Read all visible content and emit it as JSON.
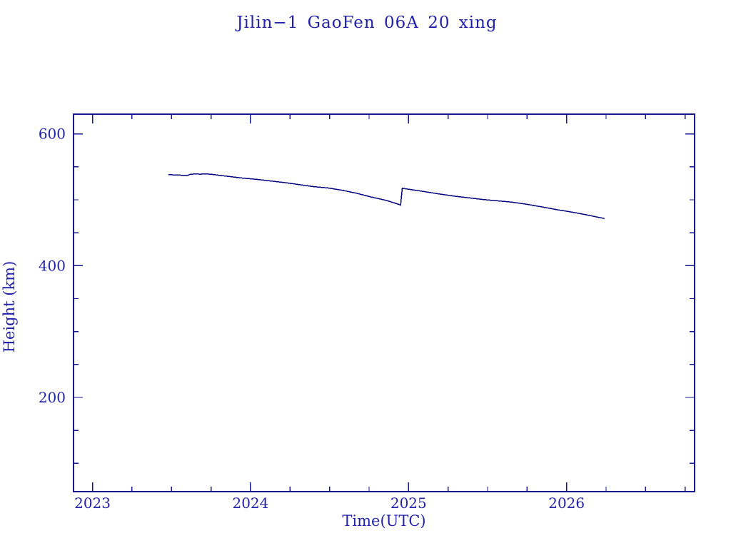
{
  "colors": {
    "background": "#ffffff",
    "text": "#2222aa",
    "axis": "#16168e",
    "line": "#000080"
  },
  "chart_data": {
    "type": "line",
    "title": "Jilin−1 GaoFen 06A 20 xing",
    "xlabel": "Time(UTC)",
    "ylabel": "Height (km)",
    "xlim": [
      2022.88,
      2026.81
    ],
    "ylim": [
      57,
      630
    ],
    "x_major_ticks": [
      2023,
      2024,
      2025,
      2026
    ],
    "x_minor_step": 0.25,
    "y_major_ticks": [
      200,
      400,
      600
    ],
    "y_minor_step": 50,
    "grid": false,
    "legend": "none",
    "tick_direction": "in",
    "series": [
      {
        "name": "orbit-height-km",
        "points": [
          [
            2023.48,
            538.0
          ],
          [
            2023.53,
            537.8
          ],
          [
            2023.57,
            537.2
          ],
          [
            2023.6,
            537.0
          ],
          [
            2023.62,
            538.8
          ],
          [
            2023.66,
            539.3
          ],
          [
            2023.68,
            538.8
          ],
          [
            2023.71,
            539.5
          ],
          [
            2023.75,
            538.8
          ],
          [
            2023.81,
            537.0
          ],
          [
            2023.86,
            535.5
          ],
          [
            2023.95,
            533.0
          ],
          [
            2024.04,
            531.0
          ],
          [
            2024.13,
            528.5
          ],
          [
            2024.22,
            526.0
          ],
          [
            2024.31,
            523.0
          ],
          [
            2024.4,
            520.0
          ],
          [
            2024.49,
            518.0
          ],
          [
            2024.58,
            514.5
          ],
          [
            2024.67,
            510.0
          ],
          [
            2024.76,
            504.5
          ],
          [
            2024.86,
            499.0
          ],
          [
            2024.92,
            494.5
          ],
          [
            2024.95,
            492.0
          ],
          [
            2024.96,
            517.5
          ],
          [
            2025.0,
            516.0
          ],
          [
            2025.1,
            512.5
          ],
          [
            2025.19,
            509.0
          ],
          [
            2025.29,
            505.5
          ],
          [
            2025.38,
            503.0
          ],
          [
            2025.47,
            500.5
          ],
          [
            2025.56,
            498.5
          ],
          [
            2025.65,
            496.5
          ],
          [
            2025.74,
            493.5
          ],
          [
            2025.85,
            489.0
          ],
          [
            2025.94,
            485.0
          ],
          [
            2026.03,
            481.5
          ],
          [
            2026.12,
            477.5
          ],
          [
            2026.2,
            473.5
          ],
          [
            2026.24,
            471.5
          ]
        ]
      }
    ]
  }
}
